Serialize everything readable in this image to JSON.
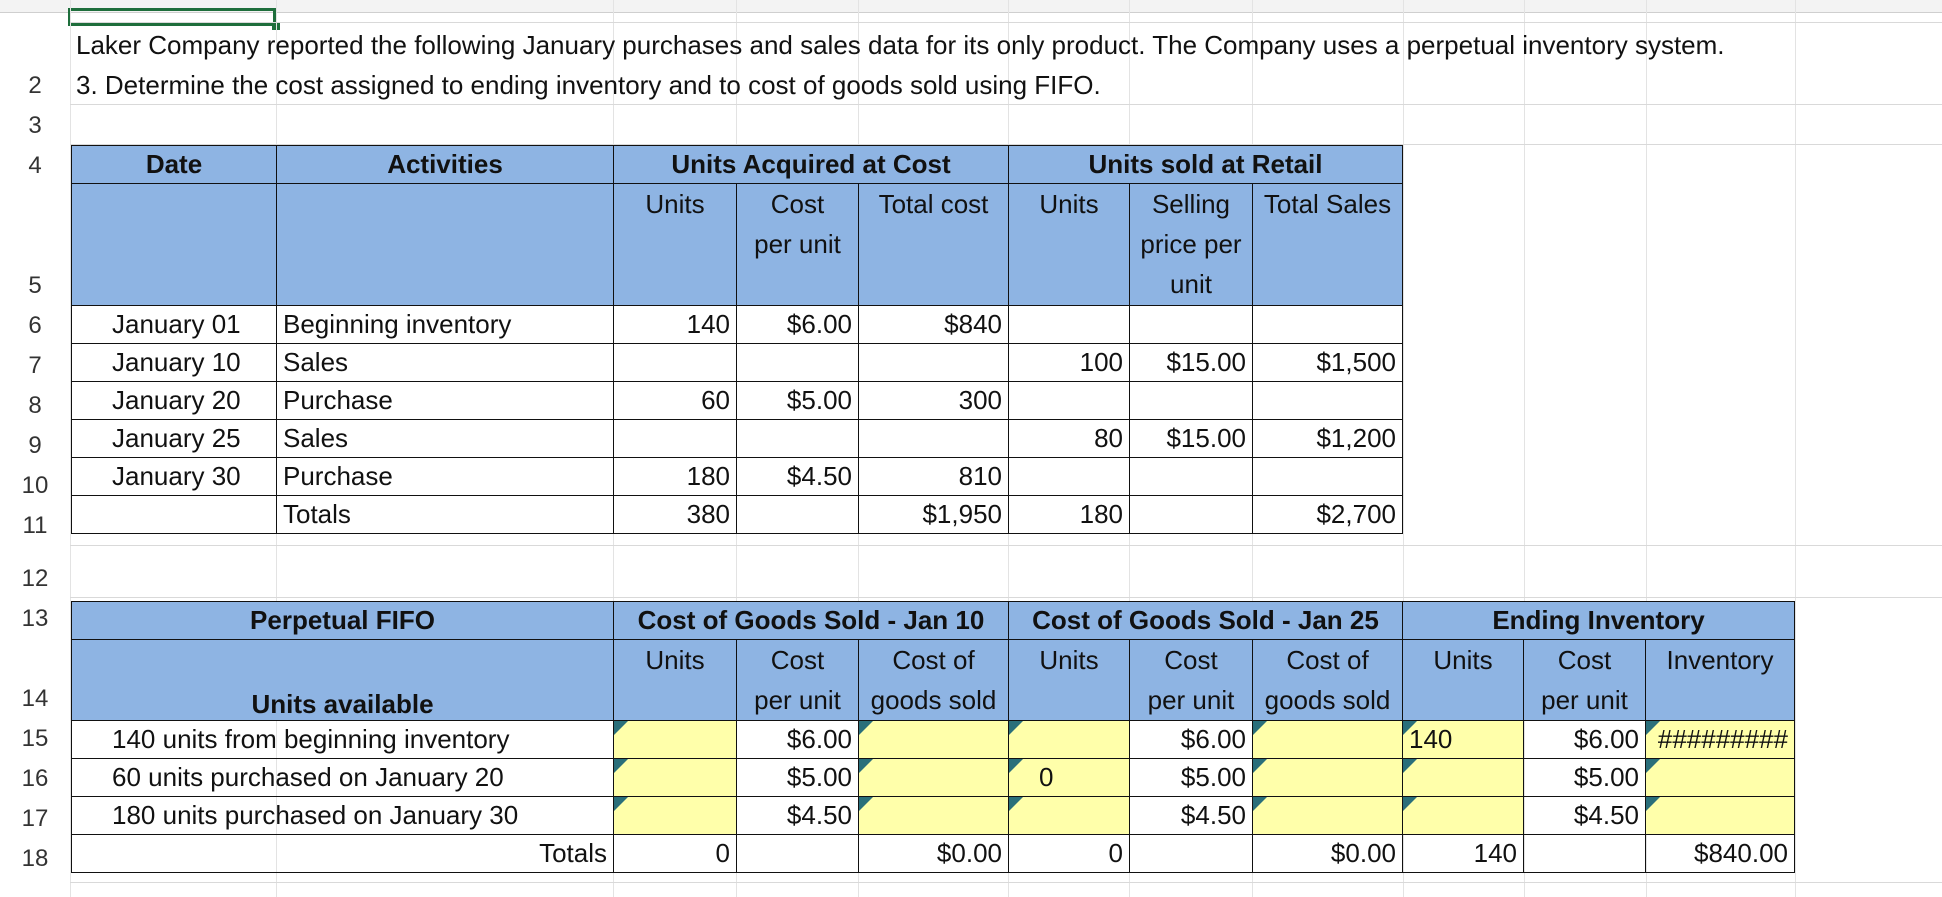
{
  "row_numbers": [
    "2",
    "3",
    "4",
    "5",
    "6",
    "7",
    "8",
    "9",
    "10",
    "11",
    "12",
    "13",
    "14",
    "15",
    "16",
    "17",
    "18"
  ],
  "intro": {
    "line1": "Laker Company reported the following January purchases and sales data for its only product. The Company uses a perpetual inventory system.",
    "line2": "3. Determine the cost assigned to ending inventory and to cost of goods sold using FIFO."
  },
  "table1": {
    "headers": {
      "date": "Date",
      "activities": "Activities",
      "acquired": "Units Acquired at Cost",
      "sold": "Units sold at Retail",
      "units": "Units",
      "cost_per_unit_1": "Cost",
      "cost_per_unit_2": "per unit",
      "total_cost": "Total cost",
      "units2": "Units",
      "selling_1": "Selling",
      "selling_2": "price per",
      "selling_3": "unit",
      "total_sales": "Total Sales"
    },
    "rows": [
      {
        "date": "January 01",
        "activity": "Beginning inventory",
        "units": "140",
        "cost": "$6.00",
        "total": "$840",
        "sunits": "",
        "price": "",
        "sales": ""
      },
      {
        "date": "January 10",
        "activity": "Sales",
        "units": "",
        "cost": "",
        "total": "",
        "sunits": "100",
        "price": "$15.00",
        "sales": "$1,500"
      },
      {
        "date": "January 20",
        "activity": "Purchase",
        "units": "60",
        "cost": "$5.00",
        "total": "300",
        "sunits": "",
        "price": "",
        "sales": ""
      },
      {
        "date": "January 25",
        "activity": "Sales",
        "units": "",
        "cost": "",
        "total": "",
        "sunits": "80",
        "price": "$15.00",
        "sales": "$1,200"
      },
      {
        "date": "January 30",
        "activity": "Purchase",
        "units": "180",
        "cost": "$4.50",
        "total": "810",
        "sunits": "",
        "price": "",
        "sales": ""
      },
      {
        "date": "",
        "activity": "Totals",
        "units": "380",
        "cost": "",
        "total": "$1,950",
        "sunits": "180",
        "price": "",
        "sales": "$2,700"
      }
    ]
  },
  "table2": {
    "headers": {
      "title": "Perpetual FIFO",
      "units_available": "Units available",
      "cogs10": "Cost of Goods Sold - Jan 10",
      "cogs25": "Cost of Goods Sold - Jan 25",
      "ending": "Ending Inventory",
      "units": "Units",
      "cost1": "Cost",
      "cost2": "per unit",
      "cogs1": "Cost of",
      "cogs2": "goods sold",
      "inventory": "Inventory"
    },
    "rows": [
      {
        "label": "140 units from beginning inventory",
        "c10_units": "",
        "c10_cost": "$6.00",
        "c10_cogs": "",
        "c25_units": "",
        "c25_cost": "$6.00",
        "c25_cogs": "",
        "ei_units": "140",
        "ei_cost": "$6.00",
        "ei_inv": "#########"
      },
      {
        "label": "60 units purchased on January 20",
        "c10_units": "",
        "c10_cost": "$5.00",
        "c10_cogs": "",
        "c25_units": "0",
        "c25_cost": "$5.00",
        "c25_cogs": "",
        "ei_units": "",
        "ei_cost": "$5.00",
        "ei_inv": ""
      },
      {
        "label": "180 units purchased on January 30",
        "c10_units": "",
        "c10_cost": "$4.50",
        "c10_cogs": "",
        "c25_units": "",
        "c25_cost": "$4.50",
        "c25_cogs": "",
        "ei_units": "",
        "ei_cost": "$4.50",
        "ei_inv": ""
      }
    ],
    "totals": {
      "label": "Totals",
      "c10_units": "0",
      "c10_cogs": "$0.00",
      "c25_units": "0",
      "c25_cogs": "$0.00",
      "ei_units": "140",
      "ei_inv": "$840.00"
    }
  }
}
